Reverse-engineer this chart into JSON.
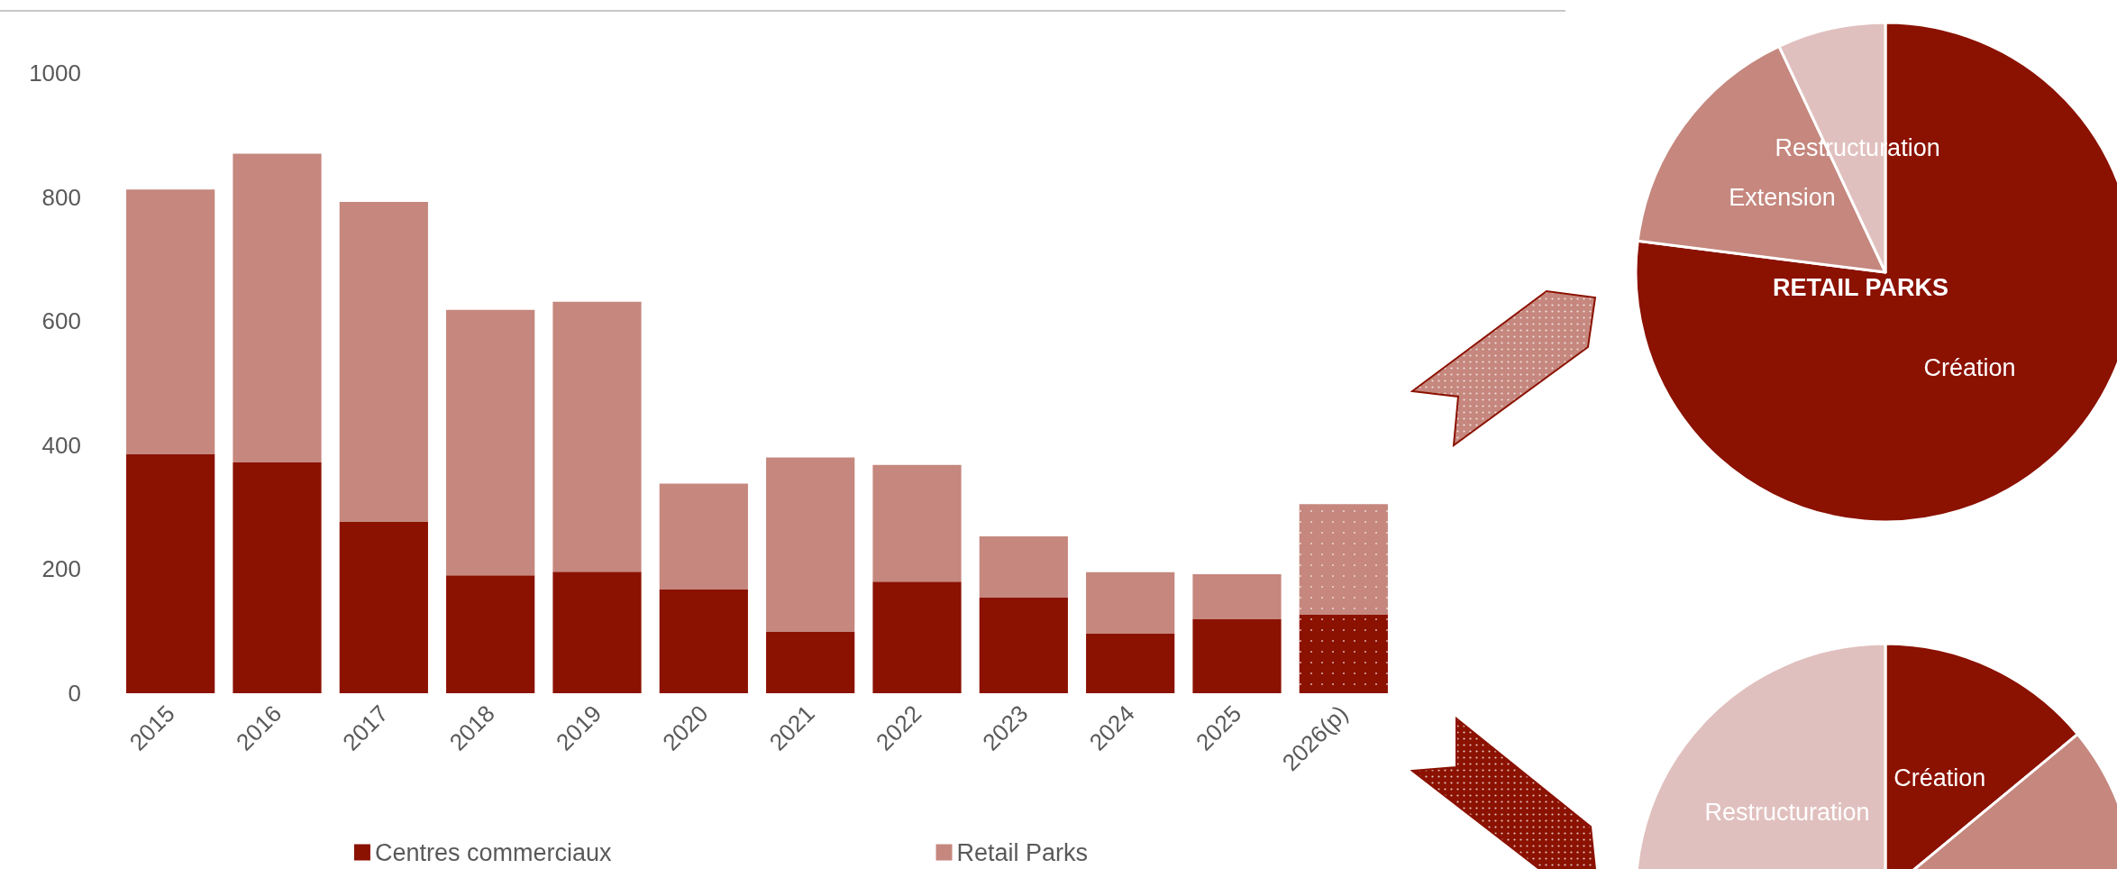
{
  "chart_data": [
    {
      "type": "bar",
      "stacked": true,
      "categories": [
        "2015",
        "2016",
        "2017",
        "2018",
        "2019",
        "2020",
        "2021",
        "2022",
        "2023",
        "2024",
        "2025",
        "2026(p)"
      ],
      "series": [
        {
          "name": "Centres commerciaux",
          "color": "#8b1100",
          "values": [
            386,
            372,
            276,
            190,
            196,
            167,
            99,
            180,
            154,
            96,
            120,
            127
          ]
        },
        {
          "name": "Retail Parks",
          "color": "#c5877e",
          "values": [
            426,
            498,
            516,
            428,
            435,
            171,
            281,
            188,
            99,
            99,
            72,
            178
          ]
        }
      ],
      "ylim": [
        0,
        1000
      ],
      "yticks": [
        0,
        200,
        400,
        600,
        800,
        1000
      ],
      "grid": false,
      "legend": "bottom"
    },
    {
      "type": "pie",
      "title": "RETAIL PARKS",
      "categories": [
        "Création",
        "Extension",
        "Restructuration"
      ],
      "values": [
        77,
        16,
        7
      ],
      "colors": [
        "#8b1100",
        "#c5877e",
        "#e0c0be"
      ]
    },
    {
      "type": "pie",
      "categories": [
        "Création",
        null,
        "Restructuration"
      ],
      "values": [
        14,
        58,
        28
      ],
      "colors": [
        "#8b1100",
        "#c5877e",
        "#e0c0be"
      ]
    }
  ]
}
